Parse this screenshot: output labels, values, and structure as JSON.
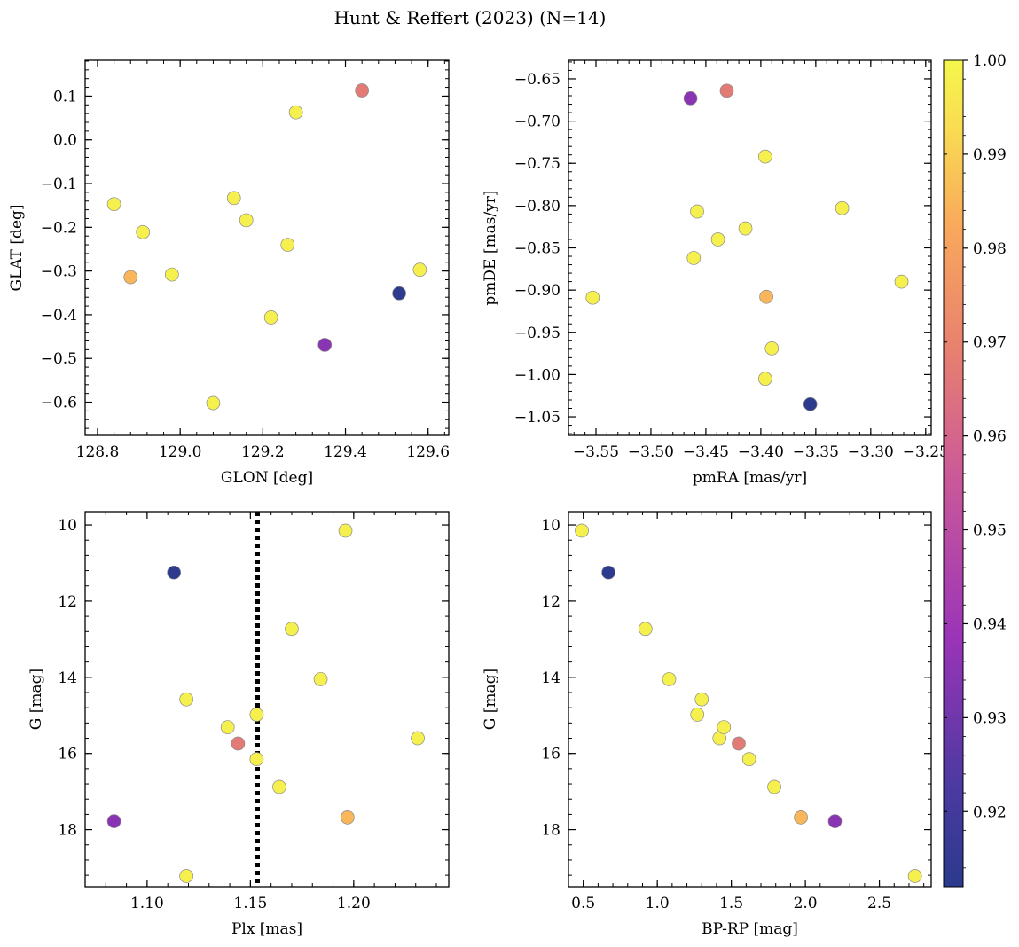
{
  "figure": {
    "title": "Hunt & Reffert (2023) (N=14)",
    "colorbar": {
      "min": 0.912,
      "max": 1.0,
      "ticks": [
        0.92,
        0.93,
        0.94,
        0.95,
        0.96,
        0.97,
        0.98,
        0.99,
        1.0
      ],
      "tick_labels": [
        "0.92",
        "0.93",
        "0.94",
        "0.95",
        "0.96",
        "0.97",
        "0.98",
        "0.99",
        "1.00"
      ],
      "colormap": "plasma"
    }
  },
  "chart_data": [
    {
      "type": "scatter",
      "xlabel": "GLON [deg]",
      "ylabel": "GLAT [deg]",
      "xlim": [
        128.77,
        129.65
      ],
      "ylim": [
        -0.676,
        0.182
      ],
      "xticks": [
        128.8,
        129.0,
        129.2,
        129.4,
        129.6
      ],
      "xtick_labels": [
        "128.8",
        "129.0",
        "129.2",
        "129.4",
        "129.6"
      ],
      "yticks": [
        -0.6,
        -0.5,
        -0.4,
        -0.3,
        -0.2,
        -0.1,
        0.0,
        0.1
      ],
      "ytick_labels": [
        "−0.6",
        "−0.5",
        "−0.4",
        "−0.3",
        "−0.2",
        "−0.1",
        "0.0",
        "0.1"
      ],
      "points": [
        {
          "x": 128.84,
          "y": -0.147,
          "c": 0.998
        },
        {
          "x": 128.88,
          "y": -0.314,
          "c": 0.985
        },
        {
          "x": 128.91,
          "y": -0.211,
          "c": 0.998
        },
        {
          "x": 128.98,
          "y": -0.308,
          "c": 0.998
        },
        {
          "x": 129.08,
          "y": -0.602,
          "c": 0.998
        },
        {
          "x": 129.13,
          "y": -0.133,
          "c": 0.998
        },
        {
          "x": 129.16,
          "y": -0.184,
          "c": 0.998
        },
        {
          "x": 129.22,
          "y": -0.406,
          "c": 0.998
        },
        {
          "x": 129.26,
          "y": -0.24,
          "c": 0.998
        },
        {
          "x": 129.28,
          "y": 0.063,
          "c": 0.998
        },
        {
          "x": 129.35,
          "y": -0.469,
          "c": 0.935
        },
        {
          "x": 129.44,
          "y": 0.113,
          "c": 0.967
        },
        {
          "x": 129.53,
          "y": -0.351,
          "c": 0.913
        },
        {
          "x": 129.58,
          "y": -0.297,
          "c": 0.998
        }
      ]
    },
    {
      "type": "scatter",
      "xlabel": "pmRA [mas/yr]",
      "ylabel": "pmDE [mas/yr]",
      "xlim": [
        -3.575,
        -3.245
      ],
      "ylim": [
        -1.072,
        -0.628
      ],
      "xticks": [
        -3.55,
        -3.5,
        -3.45,
        -3.4,
        -3.35,
        -3.3,
        -3.25
      ],
      "xtick_labels": [
        "−3.55",
        "−3.50",
        "−3.45",
        "−3.40",
        "−3.35",
        "−3.30",
        "−3.25"
      ],
      "yticks": [
        -1.05,
        -1.0,
        -0.95,
        -0.9,
        -0.85,
        -0.8,
        -0.75,
        -0.7,
        -0.65
      ],
      "ytick_labels": [
        "−1.05",
        "−1.00",
        "−0.95",
        "−0.90",
        "−0.85",
        "−0.80",
        "−0.75",
        "−0.70",
        "−0.65"
      ],
      "points": [
        {
          "x": -3.553,
          "y": -0.909,
          "c": 0.998
        },
        {
          "x": -3.464,
          "y": -0.673,
          "c": 0.935
        },
        {
          "x": -3.461,
          "y": -0.862,
          "c": 0.998
        },
        {
          "x": -3.458,
          "y": -0.807,
          "c": 0.998
        },
        {
          "x": -3.439,
          "y": -0.84,
          "c": 0.998
        },
        {
          "x": -3.431,
          "y": -0.664,
          "c": 0.967
        },
        {
          "x": -3.414,
          "y": -0.827,
          "c": 0.998
        },
        {
          "x": -3.396,
          "y": -0.742,
          "c": 0.998
        },
        {
          "x": -3.396,
          "y": -1.005,
          "c": 0.998
        },
        {
          "x": -3.395,
          "y": -0.908,
          "c": 0.985
        },
        {
          "x": -3.39,
          "y": -0.969,
          "c": 0.998
        },
        {
          "x": -3.355,
          "y": -1.035,
          "c": 0.913
        },
        {
          "x": -3.326,
          "y": -0.803,
          "c": 0.998
        },
        {
          "x": -3.272,
          "y": -0.89,
          "c": 0.998
        }
      ]
    },
    {
      "type": "scatter",
      "xlabel": "Plx [mas]",
      "ylabel": "G [mag]",
      "xlim": [
        1.07,
        1.246
      ],
      "ylim": [
        19.5,
        9.65
      ],
      "y_inverted": true,
      "vline": 1.1535,
      "xticks": [
        1.1,
        1.15,
        1.2
      ],
      "xtick_labels": [
        "1.10",
        "1.15",
        "1.20"
      ],
      "yticks": [
        10,
        12,
        14,
        16,
        18
      ],
      "ytick_labels": [
        "10",
        "12",
        "14",
        "16",
        "18"
      ],
      "points": [
        {
          "x": 1.084,
          "y": 17.78,
          "c": 0.935
        },
        {
          "x": 1.113,
          "y": 11.25,
          "c": 0.913
        },
        {
          "x": 1.119,
          "y": 14.58,
          "c": 0.998
        },
        {
          "x": 1.119,
          "y": 19.22,
          "c": 0.998
        },
        {
          "x": 1.139,
          "y": 15.31,
          "c": 0.998
        },
        {
          "x": 1.144,
          "y": 15.74,
          "c": 0.967
        },
        {
          "x": 1.153,
          "y": 14.98,
          "c": 0.998
        },
        {
          "x": 1.153,
          "y": 16.15,
          "c": 0.998
        },
        {
          "x": 1.164,
          "y": 16.88,
          "c": 0.998
        },
        {
          "x": 1.17,
          "y": 12.73,
          "c": 0.998
        },
        {
          "x": 1.184,
          "y": 14.05,
          "c": 0.998
        },
        {
          "x": 1.196,
          "y": 10.15,
          "c": 0.998
        },
        {
          "x": 1.197,
          "y": 17.68,
          "c": 0.985
        },
        {
          "x": 1.231,
          "y": 15.6,
          "c": 0.998
        }
      ]
    },
    {
      "type": "scatter",
      "xlabel": "BP-RP [mag]",
      "ylabel": "G [mag]",
      "xlim": [
        0.4,
        2.85
      ],
      "ylim": [
        19.5,
        9.65
      ],
      "y_inverted": true,
      "xticks": [
        0.5,
        1.0,
        1.5,
        2.0,
        2.5
      ],
      "xtick_labels": [
        "0.5",
        "1.0",
        "1.5",
        "2.0",
        "2.5"
      ],
      "yticks": [
        10,
        12,
        14,
        16,
        18
      ],
      "ytick_labels": [
        "10",
        "12",
        "14",
        "16",
        "18"
      ],
      "points": [
        {
          "x": 0.49,
          "y": 10.15,
          "c": 0.998
        },
        {
          "x": 0.67,
          "y": 11.25,
          "c": 0.913
        },
        {
          "x": 0.92,
          "y": 12.73,
          "c": 0.998
        },
        {
          "x": 1.08,
          "y": 14.05,
          "c": 0.998
        },
        {
          "x": 1.27,
          "y": 14.98,
          "c": 0.998
        },
        {
          "x": 1.3,
          "y": 14.58,
          "c": 0.998
        },
        {
          "x": 1.42,
          "y": 15.6,
          "c": 0.998
        },
        {
          "x": 1.45,
          "y": 15.31,
          "c": 0.998
        },
        {
          "x": 1.55,
          "y": 15.74,
          "c": 0.967
        },
        {
          "x": 1.62,
          "y": 16.15,
          "c": 0.998
        },
        {
          "x": 1.79,
          "y": 16.88,
          "c": 0.998
        },
        {
          "x": 1.97,
          "y": 17.68,
          "c": 0.985
        },
        {
          "x": 2.2,
          "y": 17.78,
          "c": 0.935
        },
        {
          "x": 2.74,
          "y": 19.22,
          "c": 0.998
        }
      ]
    }
  ]
}
